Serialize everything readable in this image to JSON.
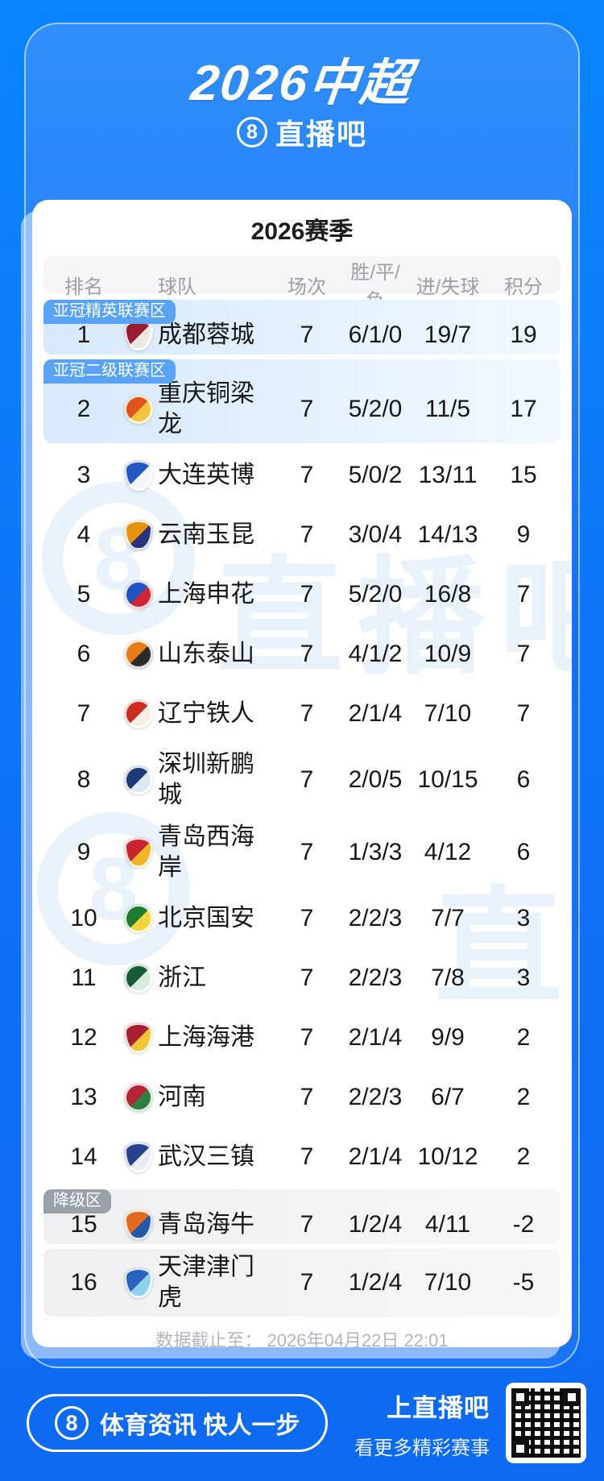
{
  "page": {
    "title": "2026中超",
    "brand": "直播吧",
    "brand_icon": "8"
  },
  "colors": {
    "background_blue": "#0f70f4",
    "badge_blue": "#58a3f5",
    "badge_gray": "#9ba1a8",
    "row_highlight_blue": "#d7e9fb",
    "row_highlight_gray": "#eff0f2"
  },
  "watermark": {
    "icon": "8",
    "text": "直播吧"
  },
  "card": {
    "season_title": "2026赛季",
    "columns": [
      "排名",
      "球队",
      "场次",
      "胜/平/负",
      "进/失球",
      "积分"
    ],
    "rows": [
      {
        "rank": "1",
        "team": "成都蓉城",
        "badge": "亚冠精英联赛区",
        "highlight": "blue",
        "matches": "7",
        "record": "6/1/0",
        "goals": "19/7",
        "points": "19",
        "crest": {
          "shape": "shield",
          "c1": "#9b1b2e",
          "c2": "#ece9e2"
        }
      },
      {
        "rank": "2",
        "team": "重庆铜梁龙",
        "badge": "亚冠二级联赛区",
        "highlight": "blue",
        "matches": "7",
        "record": "5/2/0",
        "goals": "11/5",
        "points": "17",
        "crest": {
          "shape": "circle",
          "c1": "#e0541c",
          "c2": "#f3c43f"
        }
      },
      {
        "rank": "3",
        "team": "大连英博",
        "matches": "7",
        "record": "5/0/2",
        "goals": "13/11",
        "points": "15",
        "crest": {
          "shape": "shield",
          "c1": "#2257c4",
          "c2": "#f2f6fc"
        }
      },
      {
        "rank": "4",
        "team": "云南玉昆",
        "matches": "7",
        "record": "3/0/4",
        "goals": "14/13",
        "points": "9",
        "crest": {
          "shape": "shield",
          "c1": "#e8930f",
          "c2": "#27337a"
        }
      },
      {
        "rank": "5",
        "team": "上海申花",
        "matches": "7",
        "record": "5/2/0",
        "goals": "16/8",
        "points": "7",
        "crest": {
          "shape": "circle",
          "c1": "#2053c4",
          "c2": "#cf2537"
        }
      },
      {
        "rank": "6",
        "team": "山东泰山",
        "matches": "7",
        "record": "4/1/2",
        "goals": "10/9",
        "points": "7",
        "crest": {
          "shape": "circle",
          "c1": "#e87b14",
          "c2": "#2b2b2b"
        }
      },
      {
        "rank": "7",
        "team": "辽宁铁人",
        "matches": "7",
        "record": "2/1/4",
        "goals": "7/10",
        "points": "7",
        "crest": {
          "shape": "circle",
          "c1": "#cd2b20",
          "c2": "#f5efe6"
        }
      },
      {
        "rank": "8",
        "team": "深圳新鹏城",
        "matches": "7",
        "record": "2/0/5",
        "goals": "10/15",
        "points": "6",
        "crest": {
          "shape": "circle",
          "c1": "#1d3a77",
          "c2": "#dce8f5"
        }
      },
      {
        "rank": "9",
        "team": "青岛西海岸",
        "matches": "7",
        "record": "1/3/3",
        "goals": "4/12",
        "points": "6",
        "crest": {
          "shape": "shield",
          "c1": "#c8242e",
          "c2": "#f0b429"
        }
      },
      {
        "rank": "10",
        "team": "北京国安",
        "matches": "7",
        "record": "2/2/3",
        "goals": "7/7",
        "points": "3",
        "crest": {
          "shape": "circle",
          "c1": "#1e7d33",
          "c2": "#f2d53c"
        }
      },
      {
        "rank": "11",
        "team": "浙江",
        "matches": "7",
        "record": "2/2/3",
        "goals": "7/8",
        "points": "3",
        "crest": {
          "shape": "circle",
          "c1": "#175c37",
          "c2": "#d9e9de"
        }
      },
      {
        "rank": "12",
        "team": "上海海港",
        "matches": "7",
        "record": "2/1/4",
        "goals": "9/9",
        "points": "2",
        "crest": {
          "shape": "shield",
          "c1": "#aa1f2d",
          "c2": "#f0c53a"
        }
      },
      {
        "rank": "13",
        "team": "河南",
        "matches": "7",
        "record": "2/2/3",
        "goals": "6/7",
        "points": "2",
        "crest": {
          "shape": "circle",
          "c1": "#b42432",
          "c2": "#2f8040"
        }
      },
      {
        "rank": "14",
        "team": "武汉三镇",
        "matches": "7",
        "record": "2/1/4",
        "goals": "10/12",
        "points": "2",
        "crest": {
          "shape": "shield",
          "c1": "#27418f",
          "c2": "#e9ecf4"
        }
      },
      {
        "rank": "15",
        "team": "青岛海牛",
        "badge": "降级区",
        "highlight": "gray",
        "matches": "7",
        "record": "1/2/4",
        "goals": "4/11",
        "points": "-2",
        "crest": {
          "shape": "shield",
          "c1": "#e06a1e",
          "c2": "#2458a8"
        }
      },
      {
        "rank": "16",
        "team": "天津津门虎",
        "highlight": "gray",
        "matches": "7",
        "record": "1/2/4",
        "goals": "7/10",
        "points": "-5",
        "crest": {
          "shape": "shield",
          "c1": "#2a63c0",
          "c2": "#8fd0ea"
        }
      }
    ],
    "note": "数据截止至： 2026年04月22日 22:01"
  },
  "footer": {
    "slogan": "体育资讯 快人一步",
    "cta_title": "上直播吧",
    "cta_sub": "看更多精彩赛事",
    "qr": "qr-code"
  }
}
